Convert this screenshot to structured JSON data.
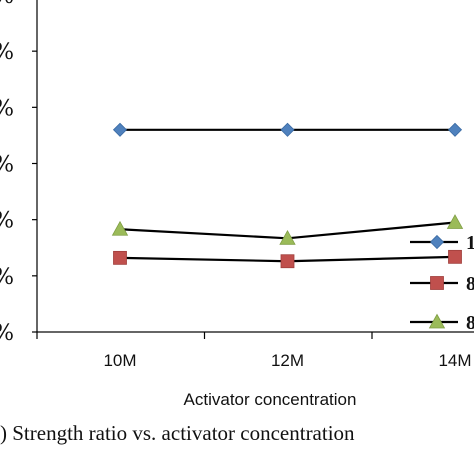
{
  "chart_data": {
    "type": "line",
    "categories": [
      "10M",
      "12M",
      "14M"
    ],
    "series": [
      {
        "name": "1",
        "color": "#4f81bd",
        "marker": "diamond",
        "values": [
          80,
          80,
          80
        ]
      },
      {
        "name": "8",
        "color": "#c0504d",
        "marker": "square",
        "values": [
          42,
          41,
          42.3
        ]
      },
      {
        "name": "8",
        "color": "#9bbb59",
        "marker": "triangle",
        "values": [
          50.5,
          47.8,
          52.5
        ]
      }
    ],
    "y_tick_labels": [
      "%",
      "%",
      "%",
      "%",
      "%",
      "%",
      "%"
    ],
    "ylim": [
      20,
      120
    ],
    "xlabel": "Activator concentration",
    "caption": ")   Strength ratio vs. activator concentration",
    "grid": false,
    "legend_position": "right"
  }
}
